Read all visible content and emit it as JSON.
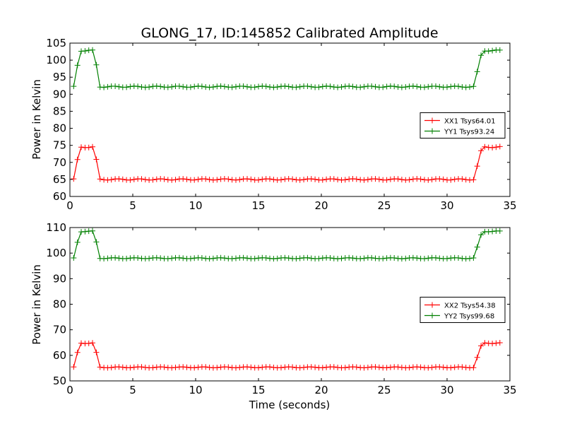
{
  "figure": {
    "title": "GLONG_17, ID:145852 Calibrated Amplitude",
    "xlabel": "Time (seconds)"
  },
  "chart_data": [
    {
      "type": "line",
      "title": "GLONG_17, ID:145852 Calibrated Amplitude",
      "xlabel": "",
      "ylabel": "Power in Kelvin",
      "xlim": [
        0,
        35
      ],
      "ylim": [
        60,
        105
      ],
      "xticks": [
        "0",
        "5",
        "10",
        "15",
        "20",
        "25",
        "30",
        "35"
      ],
      "yticks": [
        "60",
        "65",
        "70",
        "75",
        "80",
        "85",
        "90",
        "95",
        "100",
        "105"
      ],
      "legend_position": "center-right",
      "profile": {
        "t_start": 0.3,
        "t_end": 34.3,
        "step": 0.3,
        "segments": [
          [
            0.3,
            0
          ],
          [
            0.6,
            0.6
          ],
          [
            0.9,
            1
          ],
          [
            1.9,
            1
          ],
          [
            2.2,
            0.4
          ],
          [
            2.4,
            0
          ],
          [
            32.2,
            0
          ],
          [
            32.5,
            0.6
          ],
          [
            32.8,
            1
          ],
          [
            34.3,
            1
          ]
        ]
      },
      "series": [
        {
          "name": "XX1 Tsys64.01",
          "color": "#ff0000",
          "low": 65.0,
          "high": 74.5,
          "start": 72.0,
          "mid_fall": 68.0,
          "mid_rise": 72.0
        },
        {
          "name": "YY1 Tsys93.24",
          "color": "#008000",
          "low": 92.2,
          "high": 102.8,
          "start": 100.0,
          "mid_fall": 95.5,
          "mid_rise": 100.0
        }
      ]
    },
    {
      "type": "line",
      "title": "",
      "xlabel": "Time (seconds)",
      "ylabel": "Power in Kelvin",
      "xlim": [
        0,
        35
      ],
      "ylim": [
        50,
        110
      ],
      "xticks": [
        "0",
        "5",
        "10",
        "15",
        "20",
        "25",
        "30",
        "35"
      ],
      "yticks": [
        "50",
        "60",
        "70",
        "80",
        "90",
        "100",
        "110"
      ],
      "legend_position": "center-right",
      "profile": {
        "t_start": 0.3,
        "t_end": 34.3,
        "step": 0.3,
        "segments": [
          [
            0.3,
            0
          ],
          [
            0.6,
            0.6
          ],
          [
            0.9,
            1
          ],
          [
            1.9,
            1
          ],
          [
            2.2,
            0.4
          ],
          [
            2.4,
            0
          ],
          [
            32.2,
            0
          ],
          [
            32.5,
            0.6
          ],
          [
            32.8,
            1
          ],
          [
            34.3,
            1
          ]
        ]
      },
      "series": [
        {
          "name": "XX2 Tsys54.38",
          "color": "#ff0000",
          "low": 55.3,
          "high": 64.8,
          "start": 62.5,
          "mid_fall": 58.5,
          "mid_rise": 62.5
        },
        {
          "name": "YY2 Tsys99.68",
          "color": "#008000",
          "low": 98.0,
          "high": 108.5,
          "start": 106.0,
          "mid_fall": 101.0,
          "mid_rise": 106.0
        }
      ]
    }
  ]
}
